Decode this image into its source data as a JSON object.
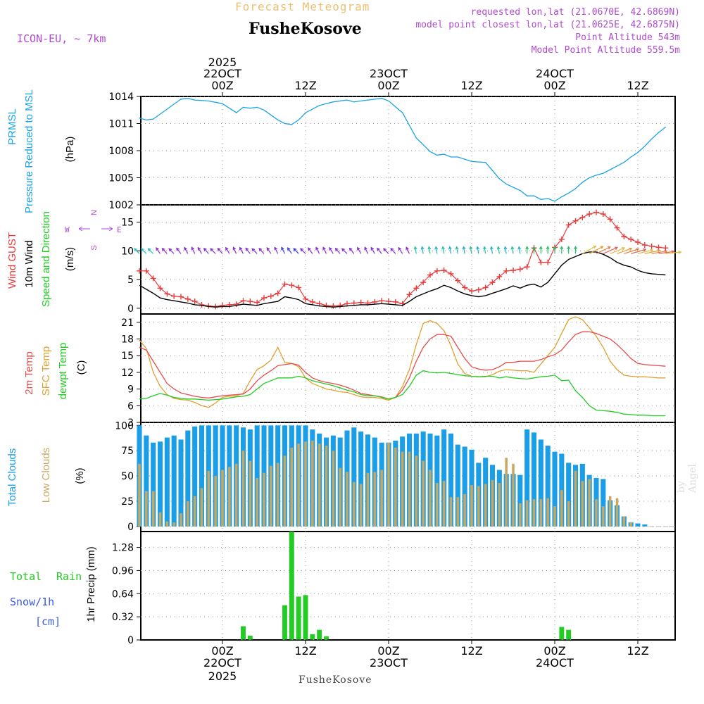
{
  "header": {
    "subtitle": "Forecast Meteogram",
    "station": "FusheKosove",
    "model": "ICON-EU, ~ 7km",
    "requested": "requested lon,lat (21.0670E, 42.6869N)",
    "closest": "model point closest lon,lat (21.0625E, 42.6875N)",
    "point_alt": "Point Altitude 543m",
    "model_alt": "Model Point Altitude 559.5m",
    "watermark": "by Angel",
    "footer_station": "FusheKosove"
  },
  "time_axis": {
    "top": [
      {
        "line1": "2025",
        "line2": "22OCT",
        "line3": "00Z",
        "h": 12
      },
      {
        "line1": "",
        "line2": "",
        "line3": "12Z",
        "h": 24
      },
      {
        "line1": "",
        "line2": "23OCT",
        "line3": "00Z",
        "h": 36
      },
      {
        "line1": "",
        "line2": "",
        "line3": "12Z",
        "h": 48
      },
      {
        "line1": "",
        "line2": "24OCT",
        "line3": "00Z",
        "h": 60
      },
      {
        "line1": "",
        "line2": "",
        "line3": "12Z",
        "h": 72
      }
    ],
    "bottom": [
      {
        "line1": "00Z",
        "line2": "22OCT",
        "line3": "2025",
        "h": 12
      },
      {
        "line1": "12Z",
        "line2": "",
        "line3": "",
        "h": 24
      },
      {
        "line1": "00Z",
        "line2": "23OCT",
        "line3": "",
        "h": 36
      },
      {
        "line1": "12Z",
        "line2": "",
        "line3": "",
        "h": 48
      },
      {
        "line1": "00Z",
        "line2": "24OCT",
        "line3": "",
        "h": 60
      },
      {
        "line1": "12Z",
        "line2": "",
        "line3": "",
        "h": 72
      }
    ]
  },
  "colors": {
    "pressure": "#1aa3e6",
    "gust": "#e83c3c",
    "wind": "#000000",
    "t2m": "#e84c4c",
    "tsfc": "#e0a030",
    "dewpt": "#22cc22",
    "total_clouds": "#1a9ee8",
    "low_clouds": "#c8a860",
    "rain": "#22cc22",
    "snow": "#3a5ae0",
    "purple": "#b04ad0"
  },
  "chart_data": [
    {
      "type": "line",
      "title": "PRMSL Pressure Reduced to MSL",
      "label1": "PRMSL",
      "label2": "Pressure Reduced to MSL",
      "unit": "(hPa)",
      "ylim": [
        1002,
        1014
      ],
      "ticks": [
        "1002",
        "1005",
        "1008",
        "1011",
        "1014"
      ],
      "x": [
        0,
        1,
        2,
        4,
        6,
        7,
        8,
        10,
        12,
        14,
        15,
        16,
        17,
        18,
        20,
        21,
        22,
        23,
        24,
        26,
        28,
        30,
        31,
        33,
        35,
        36,
        38,
        40,
        42,
        43,
        44,
        45,
        46,
        48,
        50,
        51,
        52,
        53,
        55,
        56,
        57,
        58,
        59,
        60,
        61,
        62,
        63,
        64,
        65,
        66,
        67,
        68,
        69,
        70,
        71,
        72,
        73,
        74,
        75,
        76
      ],
      "series": [
        {
          "name": "PRMSL",
          "values": [
            1011.6,
            1011.4,
            1011.5,
            1012.6,
            1013.7,
            1013.8,
            1013.6,
            1013.5,
            1013.2,
            1012.2,
            1012.8,
            1012.7,
            1012.8,
            1012.5,
            1011.4,
            1011.0,
            1010.9,
            1011.4,
            1012.2,
            1013.0,
            1013.4,
            1013.6,
            1013.4,
            1013.6,
            1013.8,
            1013.5,
            1012.2,
            1009.4,
            1007.9,
            1007.5,
            1007.6,
            1007.3,
            1007.3,
            1006.8,
            1006.7,
            1005.8,
            1004.9,
            1004.3,
            1003.6,
            1003.0,
            1003.0,
            1002.6,
            1002.7,
            1002.4,
            1002.9,
            1003.3,
            1003.8,
            1004.5,
            1005.0,
            1005.3,
            1005.5,
            1005.9,
            1006.3,
            1006.7,
            1007.3,
            1007.8,
            1008.5,
            1009.3,
            1010.0,
            1010.6
          ]
        }
      ]
    },
    {
      "type": "line",
      "title": "Wind GUST / 10m Wind Speed and Direction",
      "label_gust": "Wind GUST",
      "label_wind": "10m Wind",
      "label_dir": "Speed and Direction",
      "unit": "(m/s)",
      "compass": {
        "n": "N",
        "s": "S",
        "w": "W",
        "e": "E"
      },
      "ylim": [
        -1,
        18
      ],
      "ticks": [
        "0",
        "5",
        "10",
        "15"
      ],
      "x": [
        0,
        1,
        2,
        3,
        4,
        5,
        6,
        7,
        8,
        9,
        10,
        11,
        12,
        13,
        14,
        15,
        16,
        17,
        18,
        19,
        20,
        21,
        22,
        23,
        24,
        25,
        26,
        27,
        28,
        29,
        30,
        31,
        32,
        33,
        34,
        35,
        36,
        37,
        38,
        39,
        40,
        41,
        42,
        43,
        44,
        45,
        46,
        47,
        48,
        49,
        50,
        51,
        52,
        53,
        54,
        55,
        56,
        57,
        58,
        59,
        60,
        61,
        62,
        63,
        64,
        65,
        66,
        67,
        68,
        69,
        70,
        71,
        72,
        73,
        74,
        75,
        76
      ],
      "series": [
        {
          "name": "Wind GUST",
          "values": [
            6.5,
            6.5,
            5.2,
            3.5,
            2.5,
            2.1,
            2.0,
            1.6,
            1.2,
            0.6,
            0.4,
            0.3,
            0.5,
            0.6,
            0.7,
            1.3,
            1.2,
            1.0,
            1.8,
            2.1,
            2.6,
            4.2,
            4.0,
            3.6,
            1.6,
            1.1,
            0.8,
            0.5,
            0.4,
            0.5,
            0.8,
            0.9,
            1.0,
            0.9,
            1.1,
            1.3,
            1.2,
            1.1,
            0.8,
            2.4,
            3.5,
            4.5,
            5.8,
            6.5,
            6.6,
            6.0,
            4.8,
            3.6,
            3.0,
            3.2,
            3.6,
            4.5,
            5.5,
            6.5,
            6.6,
            6.8,
            7.2,
            10.5,
            8.0,
            8.0,
            10.6,
            12.0,
            14.5,
            15.2,
            15.8,
            16.4,
            16.7,
            16.4,
            15.5,
            14.0,
            12.5,
            12.0,
            11.5,
            11.0,
            10.8,
            10.6,
            10.5
          ]
        },
        {
          "name": "10m Wind",
          "values": [
            4.0,
            3.3,
            2.6,
            1.8,
            1.5,
            1.3,
            1.1,
            0.9,
            0.6,
            0.5,
            0.3,
            0.2,
            0.3,
            0.3,
            0.5,
            0.7,
            0.6,
            0.5,
            0.8,
            1.0,
            1.2,
            2.0,
            1.8,
            1.5,
            0.8,
            0.6,
            0.4,
            0.3,
            0.2,
            0.3,
            0.4,
            0.5,
            0.6,
            0.6,
            0.7,
            0.8,
            0.7,
            0.6,
            0.5,
            1.2,
            2.0,
            2.5,
            3.0,
            3.4,
            4.0,
            3.6,
            3.0,
            2.5,
            2.2,
            2.0,
            2.2,
            2.6,
            3.0,
            3.4,
            3.9,
            3.5,
            4.0,
            4.2,
            3.7,
            4.5,
            6.0,
            7.5,
            8.5,
            9.0,
            9.5,
            9.8,
            9.8,
            9.4,
            8.8,
            8.0,
            7.5,
            7.2,
            6.6,
            6.2,
            6.0,
            5.9,
            5.8
          ]
        }
      ]
    },
    {
      "type": "line",
      "title": "2m Temp / SFC Temp / dewpt Temp",
      "label_t2m": "2m Temp",
      "label_tsfc": "SFC Temp",
      "label_dew": "dewpt Temp",
      "unit": "(C)",
      "ylim": [
        3,
        22.5
      ],
      "ticks": [
        "3",
        "6",
        "9",
        "12",
        "15",
        "18",
        "21"
      ],
      "x": [
        0,
        1,
        2,
        3,
        4,
        5,
        6,
        7,
        8,
        9,
        10,
        11,
        12,
        13,
        14,
        15,
        16,
        17,
        18,
        19,
        20,
        21,
        22,
        23,
        24,
        25,
        26,
        27,
        28,
        29,
        30,
        31,
        32,
        33,
        34,
        35,
        36,
        37,
        38,
        39,
        40,
        41,
        42,
        43,
        44,
        45,
        46,
        47,
        48,
        49,
        50,
        51,
        52,
        53,
        54,
        55,
        56,
        57,
        58,
        59,
        60,
        61,
        62,
        63,
        64,
        65,
        66,
        67,
        68,
        69,
        70,
        71,
        72,
        73,
        74,
        75,
        76
      ],
      "series": [
        {
          "name": "2m Temp",
          "values": [
            16.5,
            16.0,
            14.0,
            12.0,
            10.0,
            9.0,
            8.3,
            8.0,
            7.7,
            7.5,
            7.4,
            7.6,
            7.8,
            7.9,
            8.0,
            8.1,
            9.0,
            10.5,
            11.5,
            12.3,
            13.2,
            13.4,
            13.6,
            13.3,
            12.0,
            11.0,
            10.5,
            10.2,
            10.0,
            9.7,
            9.3,
            8.8,
            8.2,
            8.0,
            7.8,
            7.6,
            7.2,
            7.5,
            8.8,
            11.0,
            14.0,
            16.5,
            18.0,
            18.8,
            18.8,
            18.5,
            16.5,
            14.5,
            13.0,
            12.6,
            12.4,
            12.5,
            13.0,
            13.8,
            13.8,
            14.0,
            14.0,
            14.0,
            14.3,
            14.8,
            15.2,
            16.0,
            17.5,
            18.8,
            19.3,
            19.3,
            19.0,
            18.5,
            18.0,
            17.0,
            15.8,
            14.5,
            13.6,
            13.4,
            13.3,
            13.2,
            13.1
          ]
        },
        {
          "name": "SFC Temp",
          "values": [
            17.8,
            16.3,
            12.0,
            9.5,
            8.0,
            7.3,
            7.1,
            7.0,
            6.6,
            6.0,
            5.7,
            6.5,
            7.5,
            7.7,
            7.8,
            8.2,
            10.5,
            12.5,
            13.2,
            14.2,
            16.5,
            13.8,
            13.6,
            13.0,
            11.0,
            10.0,
            9.5,
            9.0,
            8.8,
            8.5,
            8.4,
            8.0,
            7.6,
            7.5,
            7.5,
            7.3,
            7.0,
            7.5,
            9.5,
            12.5,
            17.0,
            20.8,
            21.3,
            20.8,
            19.5,
            16.8,
            13.5,
            11.8,
            11.3,
            11.2,
            11.2,
            11.6,
            12.2,
            12.5,
            12.4,
            12.3,
            12.3,
            12.0,
            13.5,
            15.0,
            16.5,
            19.0,
            21.5,
            22.0,
            21.5,
            20.0,
            18.5,
            16.5,
            14.0,
            12.5,
            11.5,
            11.3,
            11.2,
            11.2,
            11.1,
            11.0,
            11.0
          ]
        },
        {
          "name": "dewpt Temp",
          "values": [
            7.2,
            7.3,
            7.8,
            8.2,
            7.9,
            7.5,
            7.3,
            7.2,
            7.2,
            7.1,
            7.0,
            7.1,
            7.2,
            7.4,
            7.6,
            7.7,
            8.0,
            9.0,
            10.0,
            10.5,
            11.0,
            11.0,
            11.0,
            11.3,
            11.0,
            10.5,
            10.2,
            9.9,
            9.6,
            9.2,
            8.8,
            8.5,
            8.0,
            7.8,
            7.8,
            7.5,
            7.2,
            7.5,
            8.0,
            9.5,
            11.5,
            12.3,
            12.0,
            11.9,
            12.0,
            11.8,
            11.6,
            11.4,
            11.3,
            11.2,
            11.3,
            11.3,
            11.0,
            11.2,
            11.0,
            10.9,
            10.8,
            11.0,
            11.2,
            11.3,
            11.5,
            10.5,
            10.6,
            8.7,
            7.5,
            6.0,
            5.2,
            5.1,
            5.0,
            4.8,
            4.5,
            4.4,
            4.3,
            4.3,
            4.2,
            4.2,
            4.2
          ]
        }
      ]
    },
    {
      "type": "bar",
      "title": "Total Clouds / Low Clouds",
      "label_total": "Total Clouds",
      "label_low": "Low Clouds",
      "unit": "(%)",
      "ylim": [
        -5,
        103
      ],
      "ticks": [
        "0",
        "25",
        "50",
        "75",
        "100"
      ],
      "series": [
        {
          "name": "Total Clouds",
          "values": [
            100,
            90,
            83,
            84,
            88,
            90,
            86,
            95,
            99,
            100,
            100,
            100,
            100,
            100,
            100,
            98,
            96,
            100,
            100,
            100,
            100,
            100,
            100,
            100,
            100,
            96,
            92,
            88,
            90,
            88,
            95,
            98,
            94,
            91,
            88,
            83,
            83,
            85,
            89,
            92,
            92,
            94,
            92,
            90,
            96,
            92,
            81,
            79,
            76,
            63,
            68,
            61,
            56,
            52,
            52,
            51,
            96,
            93,
            86,
            80,
            74,
            72,
            63,
            61,
            62,
            51,
            48,
            47,
            26,
            21,
            10,
            4,
            3,
            2,
            1,
            1,
            1,
            1
          ]
        },
        {
          "name": "Low Clouds",
          "values": [
            62,
            35,
            35,
            14,
            5,
            4,
            13,
            25,
            30,
            38,
            55,
            50,
            56,
            59,
            62,
            75,
            65,
            48,
            53,
            60,
            63,
            70,
            78,
            82,
            84,
            85,
            82,
            80,
            75,
            58,
            54,
            44,
            42,
            53,
            54,
            56,
            83,
            78,
            74,
            74,
            70,
            65,
            56,
            43,
            45,
            29,
            29,
            32,
            41,
            40,
            42,
            46,
            43,
            68,
            62,
            23,
            26,
            27,
            27,
            28,
            20,
            36,
            25,
            55,
            45,
            47,
            27,
            20,
            30,
            28,
            10,
            4,
            1,
            1,
            1,
            1,
            1,
            1
          ]
        }
      ]
    },
    {
      "type": "bar",
      "title": "1hr Precip",
      "label_rain": "Total Rain",
      "label_snow": "Snow/1h",
      "label_cm": "[cm]",
      "unit": "1hr Precip (mm)",
      "ylim": [
        0,
        1.5
      ],
      "ticks": [
        "0",
        "0.32",
        "0.64",
        "0.96",
        "1.28"
      ],
      "x": [
        15,
        16,
        21,
        22,
        23,
        24,
        25,
        26,
        27,
        61,
        62
      ],
      "series": [
        {
          "name": "Total Rain",
          "values": [
            0.19,
            0.06,
            0.48,
            1.5,
            0.6,
            0.62,
            0.08,
            0.14,
            0.05,
            0.18,
            0.14
          ]
        }
      ]
    }
  ]
}
